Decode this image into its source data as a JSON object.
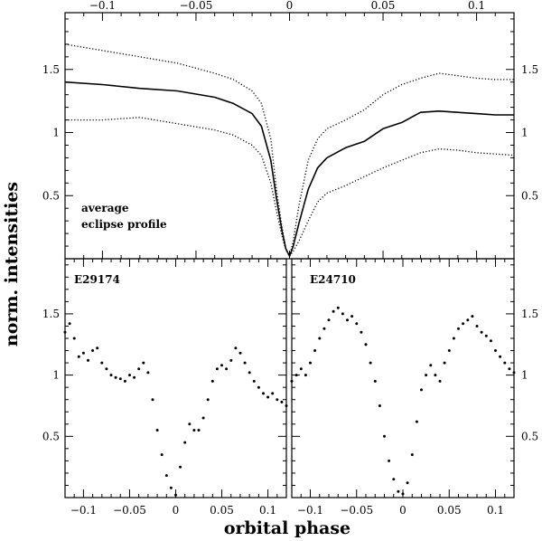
{
  "figure": {
    "ylabel": "norm. intensities",
    "xlabel": "orbital phase"
  },
  "chart_data": [
    {
      "type": "line",
      "panel": "top",
      "annotation": [
        "average",
        "eclipse profile"
      ],
      "xlim": [
        -0.12,
        0.12
      ],
      "ylim": [
        0,
        1.95
      ],
      "xticks": [
        -0.1,
        -0.05,
        0,
        0.05,
        0.1
      ],
      "xtick_labels": [
        "−0.1",
        "−0.05",
        "0",
        "0.05",
        "0.1"
      ],
      "yticks": [
        0.5,
        1,
        1.5
      ],
      "ytick_labels": [
        "0.5",
        "1",
        "1.5"
      ],
      "series": [
        {
          "style": "solid",
          "x": [
            -0.12,
            -0.1,
            -0.08,
            -0.06,
            -0.04,
            -0.03,
            -0.02,
            -0.015,
            -0.01,
            -0.007,
            -0.004,
            -0.002,
            0,
            0.002,
            0.005,
            0.01,
            0.015,
            0.02,
            0.03,
            0.04,
            0.05,
            0.06,
            0.07,
            0.08,
            0.09,
            0.1,
            0.11,
            0.12
          ],
          "y": [
            1.4,
            1.38,
            1.35,
            1.33,
            1.28,
            1.23,
            1.15,
            1.05,
            0.78,
            0.48,
            0.22,
            0.08,
            0.02,
            0.1,
            0.28,
            0.55,
            0.72,
            0.8,
            0.88,
            0.93,
            1.03,
            1.08,
            1.16,
            1.17,
            1.16,
            1.15,
            1.14,
            1.14
          ]
        },
        {
          "style": "dotted",
          "x": [
            -0.12,
            -0.1,
            -0.08,
            -0.06,
            -0.04,
            -0.03,
            -0.02,
            -0.015,
            -0.01,
            -0.007,
            -0.004,
            -0.002,
            0,
            0.002,
            0.005,
            0.01,
            0.015,
            0.02,
            0.03,
            0.04,
            0.05,
            0.06,
            0.07,
            0.08,
            0.09,
            0.1,
            0.11,
            0.12
          ],
          "y": [
            1.7,
            1.65,
            1.6,
            1.55,
            1.47,
            1.42,
            1.33,
            1.23,
            0.95,
            0.55,
            0.25,
            0.08,
            0.02,
            0.14,
            0.42,
            0.78,
            0.95,
            1.03,
            1.1,
            1.18,
            1.3,
            1.38,
            1.43,
            1.47,
            1.45,
            1.43,
            1.42,
            1.42
          ]
        },
        {
          "style": "dotted",
          "x": [
            -0.12,
            -0.1,
            -0.08,
            -0.06,
            -0.04,
            -0.03,
            -0.02,
            -0.015,
            -0.01,
            -0.007,
            -0.004,
            -0.002,
            0,
            0.002,
            0.005,
            0.01,
            0.015,
            0.02,
            0.03,
            0.04,
            0.05,
            0.06,
            0.07,
            0.08,
            0.09,
            0.1,
            0.11,
            0.12
          ],
          "y": [
            1.1,
            1.1,
            1.12,
            1.07,
            1.02,
            0.98,
            0.9,
            0.82,
            0.6,
            0.38,
            0.18,
            0.07,
            0.02,
            0.06,
            0.14,
            0.3,
            0.45,
            0.52,
            0.58,
            0.65,
            0.72,
            0.78,
            0.84,
            0.87,
            0.86,
            0.84,
            0.83,
            0.82
          ]
        }
      ]
    },
    {
      "type": "scatter",
      "panel": "bottom-left",
      "annotation": "E29174",
      "xlim": [
        -0.12,
        0.12
      ],
      "ylim": [
        0,
        1.95
      ],
      "xticks": [
        -0.1,
        -0.05,
        0,
        0.05,
        0.1
      ],
      "xtick_labels": [
        "−0.1",
        "−0.05",
        "0",
        "0.05",
        "0.1"
      ],
      "yticks": [
        0.5,
        1,
        1.5
      ],
      "ytick_labels": [
        "0.5",
        "1",
        "1.5"
      ],
      "series": [
        {
          "x": [
            -0.12,
            -0.115,
            -0.11,
            -0.105,
            -0.1,
            -0.095,
            -0.09,
            -0.085,
            -0.08,
            -0.075,
            -0.07,
            -0.065,
            -0.06,
            -0.055,
            -0.05,
            -0.045,
            -0.04,
            -0.035,
            -0.03,
            -0.025,
            -0.02,
            -0.015,
            -0.01,
            -0.005,
            0,
            0.005,
            0.01,
            0.015,
            0.02,
            0.025,
            0.03,
            0.035,
            0.04,
            0.045,
            0.05,
            0.055,
            0.06,
            0.065,
            0.07,
            0.075,
            0.08,
            0.085,
            0.09,
            0.095,
            0.1,
            0.105,
            0.11,
            0.115,
            0.12
          ],
          "y": [
            1.35,
            1.42,
            1.3,
            1.15,
            1.18,
            1.12,
            1.2,
            1.22,
            1.1,
            1.05,
            1.0,
            0.98,
            0.97,
            0.95,
            1.0,
            0.98,
            1.05,
            1.1,
            1.02,
            0.8,
            0.55,
            0.35,
            0.18,
            0.08,
            0.02,
            0.25,
            0.45,
            0.6,
            0.55,
            0.55,
            0.65,
            0.8,
            0.95,
            1.05,
            1.08,
            1.05,
            1.12,
            1.22,
            1.18,
            1.1,
            1.02,
            0.95,
            0.9,
            0.85,
            0.82,
            0.85,
            0.8,
            0.78,
            0.75
          ]
        }
      ]
    },
    {
      "type": "scatter",
      "panel": "bottom-right",
      "annotation": "E24710",
      "xlim": [
        -0.12,
        0.12
      ],
      "ylim": [
        0,
        1.95
      ],
      "xticks": [
        -0.1,
        -0.05,
        0,
        0.05,
        0.1
      ],
      "xtick_labels": [
        "−0.1",
        "−0.05",
        "0",
        "0.05",
        "0.1"
      ],
      "yticks": [
        0.5,
        1,
        1.5
      ],
      "ytick_labels": [
        "0.5",
        "1",
        "1.5"
      ],
      "series": [
        {
          "x": [
            -0.12,
            -0.115,
            -0.11,
            -0.105,
            -0.1,
            -0.095,
            -0.09,
            -0.085,
            -0.08,
            -0.075,
            -0.07,
            -0.065,
            -0.06,
            -0.055,
            -0.05,
            -0.045,
            -0.04,
            -0.035,
            -0.03,
            -0.025,
            -0.02,
            -0.015,
            -0.01,
            -0.005,
            0,
            0.005,
            0.01,
            0.015,
            0.02,
            0.025,
            0.03,
            0.035,
            0.04,
            0.045,
            0.05,
            0.055,
            0.06,
            0.065,
            0.07,
            0.075,
            0.08,
            0.085,
            0.09,
            0.095,
            0.1,
            0.105,
            0.11,
            0.115,
            0.12
          ],
          "y": [
            0.95,
            1.0,
            1.05,
            1.0,
            1.1,
            1.2,
            1.3,
            1.38,
            1.45,
            1.52,
            1.55,
            1.5,
            1.45,
            1.48,
            1.42,
            1.35,
            1.25,
            1.1,
            0.95,
            0.75,
            0.5,
            0.3,
            0.15,
            0.05,
            0.03,
            0.12,
            0.35,
            0.62,
            0.88,
            1.0,
            1.08,
            1.0,
            0.95,
            1.1,
            1.2,
            1.3,
            1.38,
            1.42,
            1.45,
            1.48,
            1.4,
            1.35,
            1.32,
            1.28,
            1.2,
            1.15,
            1.1,
            1.05,
            1.02
          ]
        }
      ]
    }
  ]
}
